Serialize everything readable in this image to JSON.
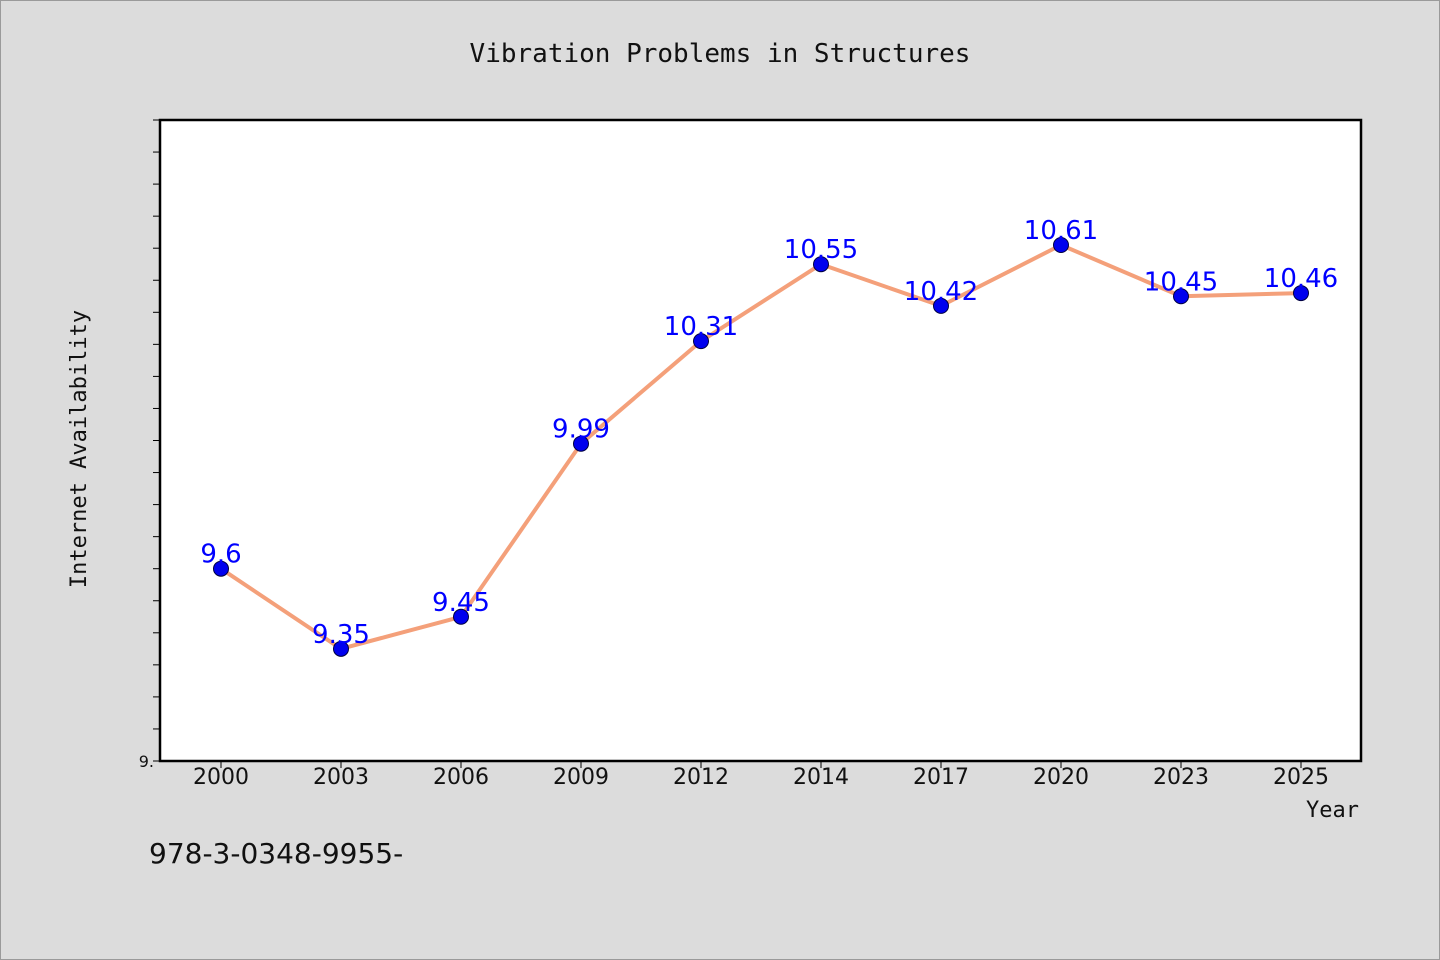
{
  "chart_data": {
    "type": "line",
    "title": "Vibration Problems in Structures",
    "xlabel": "Year",
    "ylabel": "Internet Availability",
    "categories": [
      "2000",
      "2003",
      "2006",
      "2009",
      "2012",
      "2014",
      "2017",
      "2020",
      "2023",
      "2025"
    ],
    "series": [
      {
        "values": [
          9.6,
          9.35,
          9.45,
          9.99,
          10.31,
          10.55,
          10.42,
          10.61,
          10.45,
          10.46
        ],
        "labels": [
          "9.6",
          "9.35",
          "9.45",
          "9.99",
          "10.31",
          "10.55",
          "10.42",
          "10.61",
          "10.45",
          "10.46"
        ],
        "line_color": "#f4a07a",
        "marker_color": "#0000ee",
        "label_color": "#0000ff"
      }
    ],
    "ylim": [
      9.0,
      11.0
    ],
    "y_tick_labels": [
      {
        "value": 9.0,
        "label": "9."
      }
    ],
    "y_minor_ticks": 20,
    "grid": false,
    "legend": "none"
  },
  "footer": {
    "text": "978-3-0348-9955-"
  },
  "colors": {
    "background": "#dcdcdc",
    "plot_background": "#ffffff",
    "axis": "#000000"
  }
}
